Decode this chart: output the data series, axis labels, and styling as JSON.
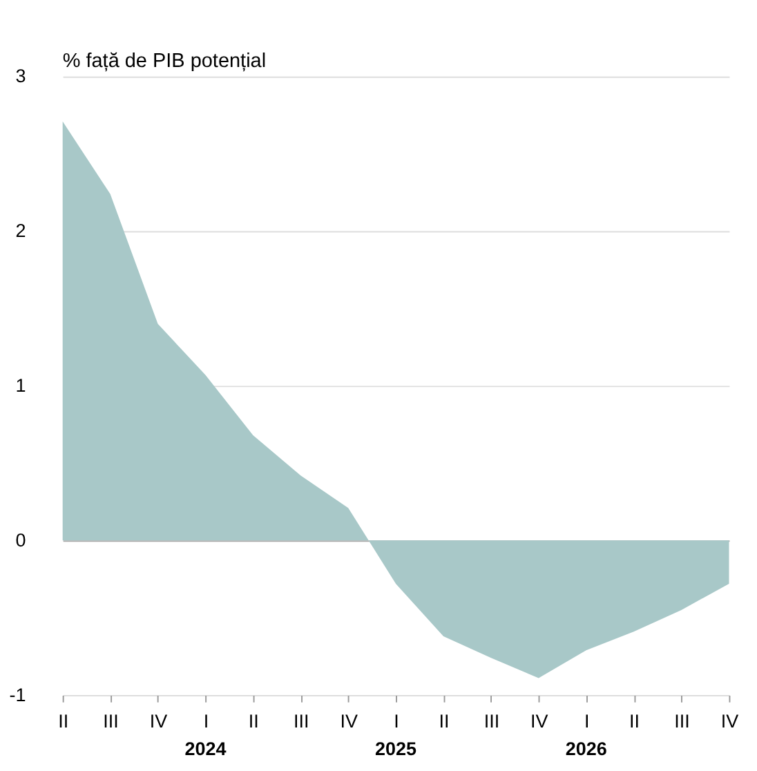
{
  "chart_data": {
    "type": "area",
    "ylabel": "% față de PIB potențial",
    "categories": [
      "II",
      "III",
      "IV",
      "I",
      "II",
      "III",
      "IV",
      "I",
      "II",
      "III",
      "IV",
      "I",
      "II",
      "III",
      "IV"
    ],
    "series": [
      {
        "color": "#a8c8c8",
        "values": [
          2.71,
          2.24,
          1.4,
          1.07,
          0.68,
          0.42,
          0.21,
          -0.28,
          -0.62,
          -0.76,
          -0.89,
          -0.71,
          -0.59,
          -0.45,
          -0.28
        ]
      }
    ],
    "ylim": [
      -1,
      3
    ],
    "yticks": [
      -1,
      0,
      1,
      2,
      3
    ],
    "grid": "y",
    "annotations": [
      "2024",
      "2025",
      "2026"
    ]
  }
}
